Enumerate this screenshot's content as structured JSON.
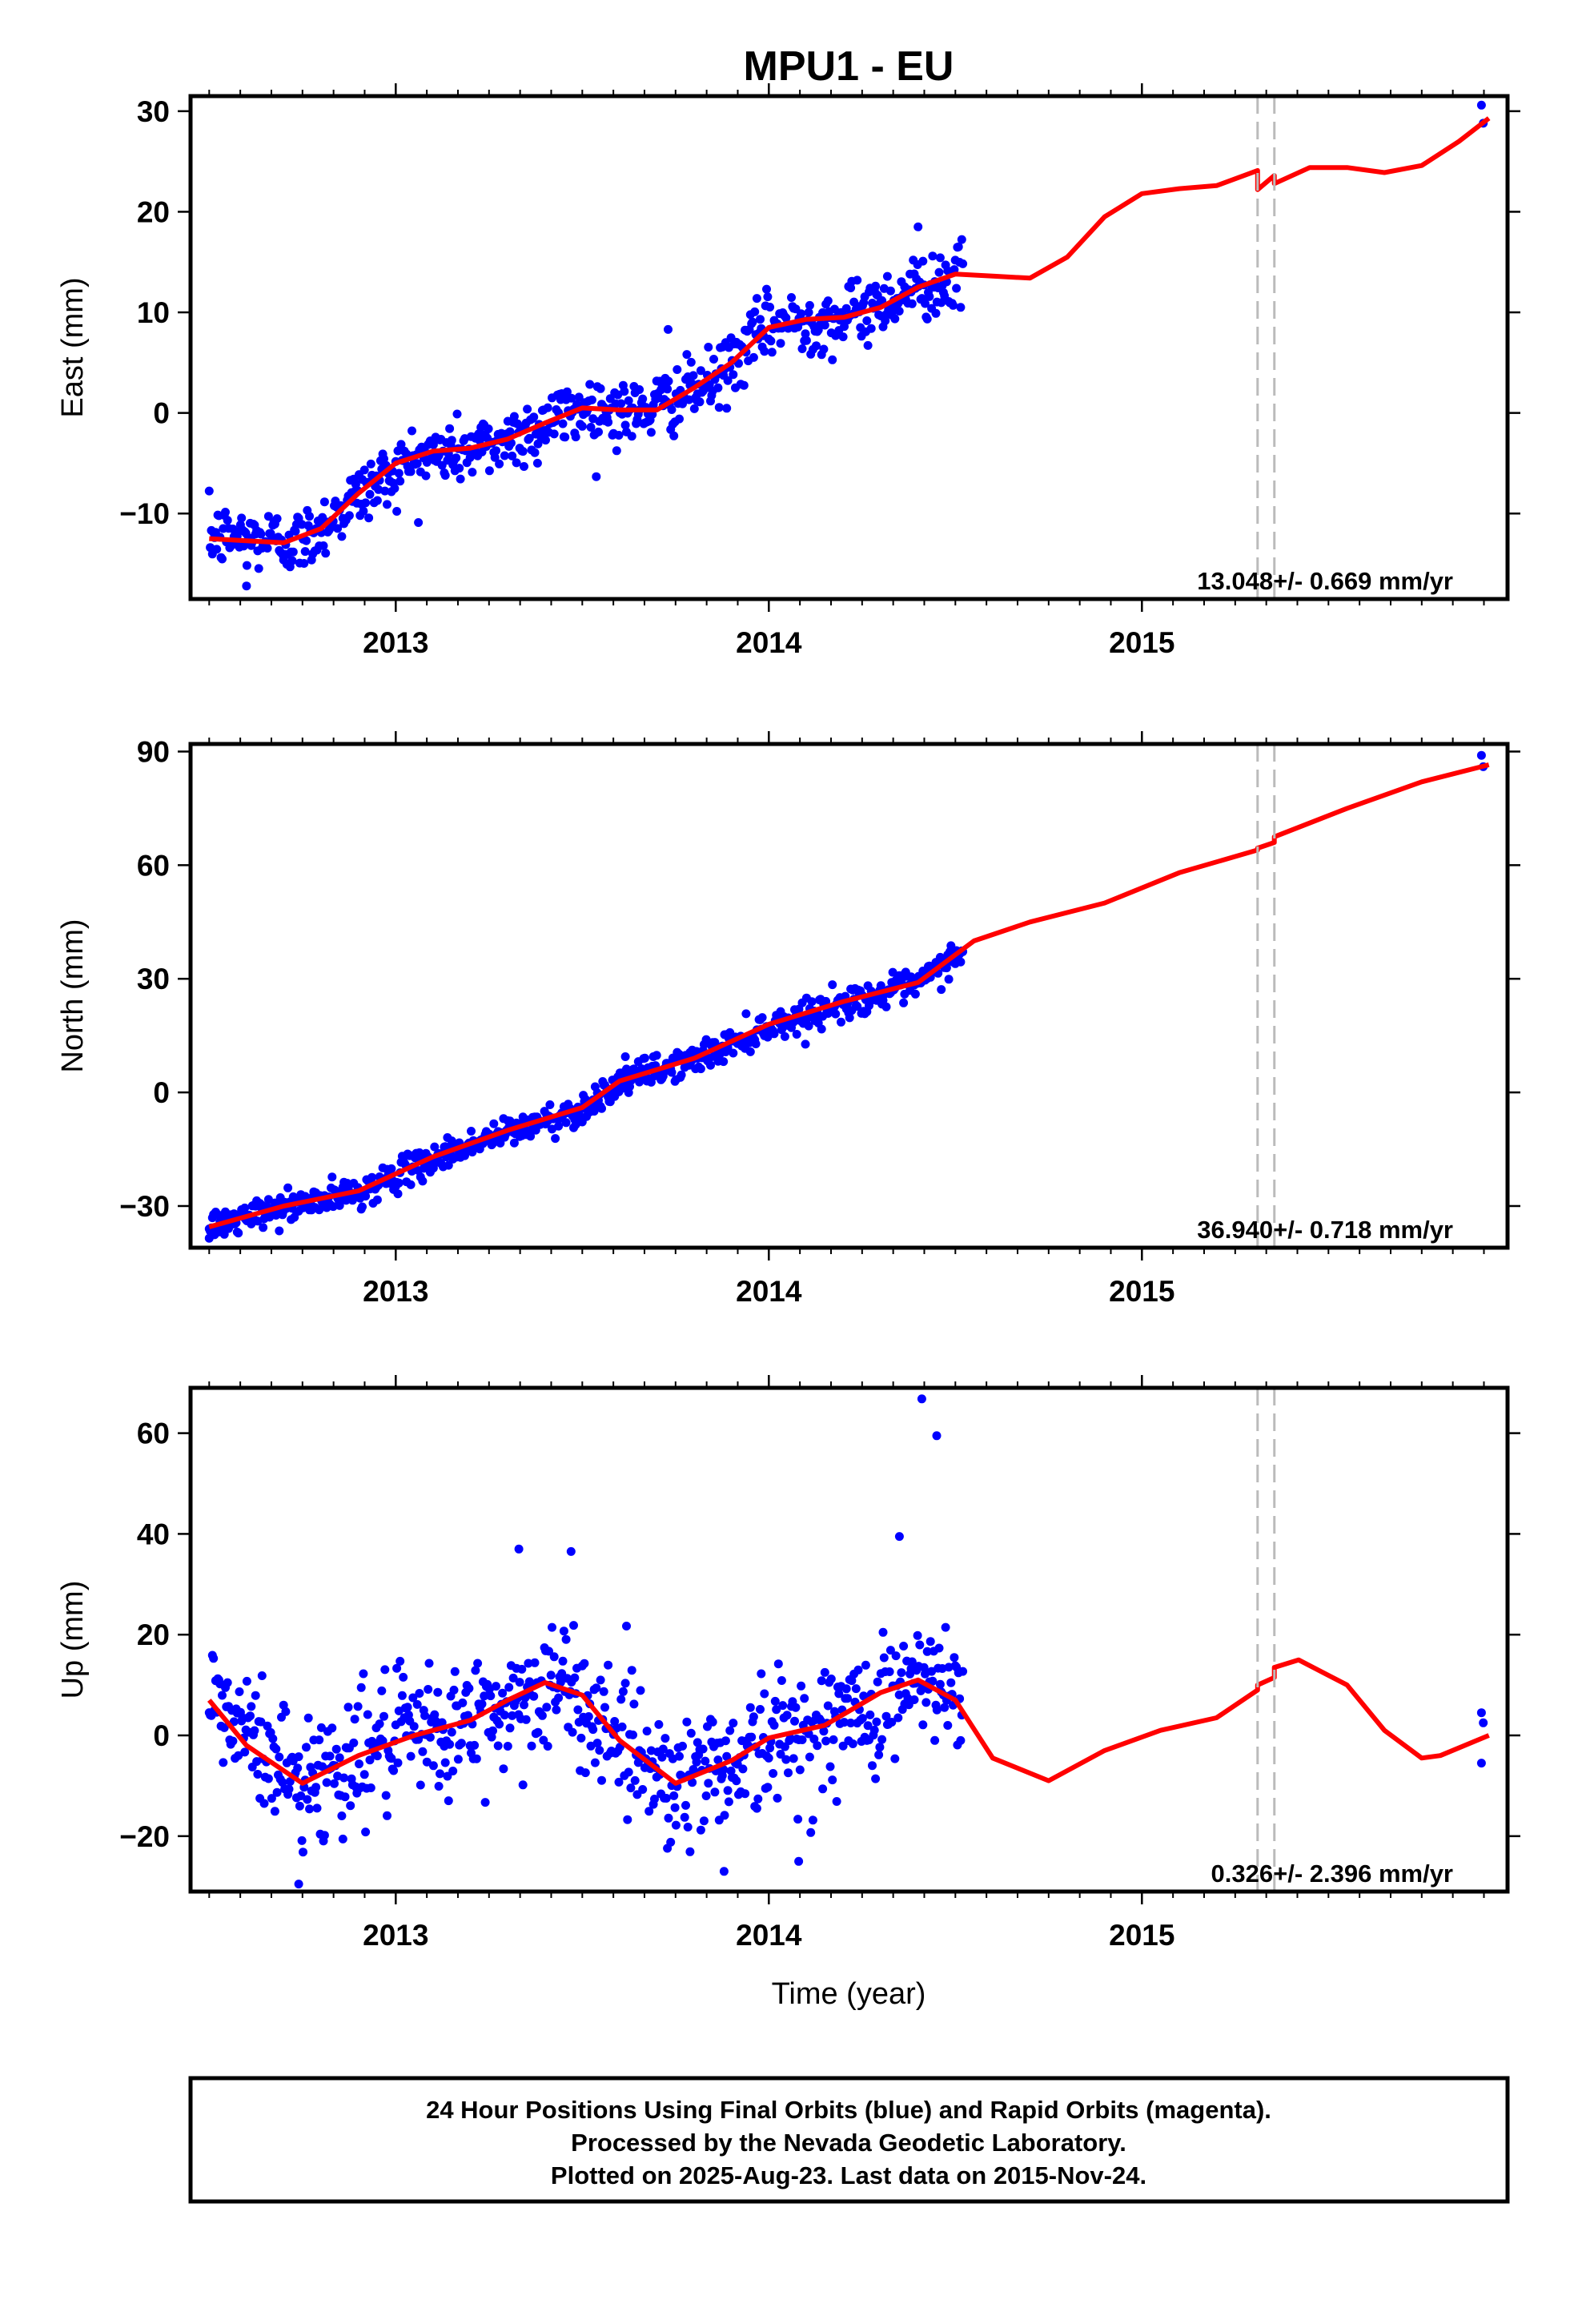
{
  "title": "MPU1 - EU",
  "footer": {
    "line1": "24 Hour Positions Using Final Orbits (blue) and Rapid Orbits (magenta).",
    "line2": "Processed by the Nevada Geodetic Laboratory.",
    "line3": "Plotted on 2025-Aug-23. Last data on 2015-Nov-24."
  },
  "colors": {
    "final_orbit_points": "#0000ff",
    "trend_line": "#ff0000",
    "equipment_change_line": "#bbbbbb",
    "frame": "#000000"
  },
  "chart_data": [
    {
      "type": "scatter",
      "ylabel": "East (mm)",
      "xlabel": "",
      "xlim": [
        2012.45,
        2015.98
      ],
      "ylim": [
        -18.5,
        31.5
      ],
      "x_ticks": [
        2013,
        2014,
        2015
      ],
      "x_tick_labels": [
        "2013",
        "2014",
        "2015"
      ],
      "y_ticks": [
        -10,
        0,
        10,
        20,
        30
      ],
      "y_tick_labels": [
        "−10",
        "0",
        "10",
        "20",
        "30"
      ],
      "rate_text": "13.048+/- 0.669 mm/yr",
      "vertical_markers": [
        2015.31,
        2015.355
      ],
      "grid": false,
      "trend": {
        "name": "model fit",
        "x": [
          2012.5,
          2012.6,
          2012.7,
          2012.8,
          2012.9,
          2013.0,
          2013.1,
          2013.2,
          2013.3,
          2013.4,
          2013.5,
          2013.6,
          2013.7,
          2013.8,
          2013.9,
          2014.0,
          2014.1,
          2014.2,
          2014.3,
          2014.4,
          2014.5,
          2014.6,
          2014.7,
          2014.8,
          2014.9,
          2015.0,
          2015.1,
          2015.2,
          2015.31,
          2015.31,
          2015.355,
          2015.355,
          2015.45,
          2015.55,
          2015.65,
          2015.75,
          2015.85,
          2015.93
        ],
        "y": [
          -12.5,
          -12.7,
          -12.9,
          -11.5,
          -8.0,
          -5.0,
          -3.8,
          -3.5,
          -2.6,
          -1.0,
          0.5,
          0.3,
          0.3,
          2.5,
          5.0,
          8.5,
          9.3,
          9.5,
          10.5,
          12.5,
          13.8,
          13.6,
          13.4,
          15.5,
          19.5,
          21.8,
          22.3,
          22.6,
          24.1,
          22.2,
          23.6,
          22.8,
          24.4,
          24.4,
          23.9,
          24.6,
          27.0,
          29.3
        ]
      },
      "observations": {
        "anchors": [
          [
            2012.5,
            -12.2
          ],
          [
            2012.75,
            -12.8
          ],
          [
            2012.9,
            -8.2
          ],
          [
            2013.05,
            -4.5
          ],
          [
            2013.25,
            -3.3
          ],
          [
            2013.5,
            0.5
          ],
          [
            2013.65,
            0.0
          ],
          [
            2013.85,
            3.0
          ],
          [
            2014.0,
            8.8
          ],
          [
            2014.2,
            9.4
          ],
          [
            2014.4,
            12.5
          ],
          [
            2014.52,
            13.5
          ]
        ],
        "count": 700,
        "scatter_sd": 1.6,
        "extra_points": [
          [
            2015.91,
            30.6
          ],
          [
            2015.915,
            28.8
          ],
          [
            2013.73,
            8.3
          ],
          [
            2012.6,
            -17.2
          ],
          [
            2014.4,
            18.5
          ],
          [
            2013.38,
            -5.0
          ]
        ]
      }
    },
    {
      "type": "scatter",
      "ylabel": "North (mm)",
      "xlabel": "",
      "xlim": [
        2012.45,
        2015.98
      ],
      "ylim": [
        -41,
        92
      ],
      "x_ticks": [
        2013,
        2014,
        2015
      ],
      "x_tick_labels": [
        "2013",
        "2014",
        "2015"
      ],
      "y_ticks": [
        -30,
        0,
        30,
        60,
        90
      ],
      "y_tick_labels": [
        "−30",
        "0",
        "30",
        "60",
        "90"
      ],
      "rate_text": "36.940+/- 0.718 mm/yr",
      "vertical_markers": [
        2015.31,
        2015.355
      ],
      "grid": false,
      "trend": {
        "name": "model fit",
        "x": [
          2012.5,
          2012.7,
          2012.9,
          2013.1,
          2013.3,
          2013.5,
          2013.6,
          2013.8,
          2014.0,
          2014.2,
          2014.4,
          2014.55,
          2014.7,
          2014.9,
          2015.1,
          2015.31,
          2015.31,
          2015.355,
          2015.355,
          2015.55,
          2015.75,
          2015.93
        ],
        "y": [
          -35.5,
          -30,
          -26,
          -17,
          -10,
          -4,
          3,
          9,
          18,
          24,
          29,
          40,
          45,
          50,
          58,
          64,
          64.5,
          66,
          67.5,
          75,
          82,
          86.5
        ]
      },
      "observations": {
        "anchors": [
          [
            2012.5,
            -35.5
          ],
          [
            2012.7,
            -30.5
          ],
          [
            2012.9,
            -26.5
          ],
          [
            2013.1,
            -17.5
          ],
          [
            2013.3,
            -10.5
          ],
          [
            2013.5,
            -4.5
          ],
          [
            2013.6,
            3.0
          ],
          [
            2013.8,
            8.5
          ],
          [
            2014.0,
            17.5
          ],
          [
            2014.2,
            23.5
          ],
          [
            2014.4,
            28.5
          ],
          [
            2014.52,
            37.5
          ]
        ],
        "count": 700,
        "scatter_sd": 2.0,
        "extra_points": [
          [
            2015.91,
            89.0
          ],
          [
            2015.915,
            86.0
          ],
          [
            2012.5,
            -38.5
          ]
        ]
      }
    },
    {
      "type": "scatter",
      "ylabel": "Up (mm)",
      "xlabel": "Time (year)",
      "xlim": [
        2012.45,
        2015.98
      ],
      "ylim": [
        -31,
        69
      ],
      "x_ticks": [
        2013,
        2014,
        2015
      ],
      "x_tick_labels": [
        "2013",
        "2014",
        "2015"
      ],
      "y_ticks": [
        -20,
        0,
        20,
        40,
        60
      ],
      "y_tick_labels": [
        "−20",
        "0",
        "20",
        "40",
        "60"
      ],
      "rate_text": "0.326+/- 2.396 mm/yr",
      "vertical_markers": [
        2015.31,
        2015.355
      ],
      "grid": false,
      "trend": {
        "name": "model fit",
        "x": [
          2012.5,
          2012.6,
          2012.75,
          2012.9,
          2013.05,
          2013.2,
          2013.3,
          2013.4,
          2013.5,
          2013.6,
          2013.75,
          2013.9,
          2014.0,
          2014.15,
          2014.3,
          2014.4,
          2014.5,
          2014.6,
          2014.75,
          2014.9,
          2015.05,
          2015.2,
          2015.31,
          2015.31,
          2015.355,
          2015.355,
          2015.42,
          2015.55,
          2015.65,
          2015.75,
          2015.8,
          2015.93
        ],
        "y": [
          7,
          -2,
          -9.5,
          -4,
          0,
          3,
          7,
          10.5,
          8,
          -1,
          -9.5,
          -5,
          -0.5,
          2,
          8.5,
          11,
          7,
          -4.5,
          -9,
          -3,
          1,
          3.5,
          9,
          10,
          11.5,
          13.5,
          15,
          10,
          1,
          -4.5,
          -4,
          0
        ]
      },
      "observations": {
        "anchors": [
          [
            2012.5,
            7.0
          ],
          [
            2012.75,
            -9.5
          ],
          [
            2012.95,
            -2.0
          ],
          [
            2013.1,
            0.0
          ],
          [
            2013.25,
            3.5
          ],
          [
            2013.42,
            10.5
          ],
          [
            2013.58,
            2.0
          ],
          [
            2013.75,
            -9.5
          ],
          [
            2013.92,
            -4.0
          ],
          [
            2014.05,
            0.0
          ],
          [
            2014.2,
            2.5
          ],
          [
            2014.4,
            11.0
          ],
          [
            2014.52,
            7.0
          ]
        ],
        "count": 700,
        "scatter_sd": 6.5,
        "extra_points": [
          [
            2014.41,
            66.8
          ],
          [
            2014.45,
            59.5
          ],
          [
            2013.33,
            37.0
          ],
          [
            2013.47,
            36.5
          ],
          [
            2014.35,
            39.5
          ],
          [
            2014.08,
            -25.0
          ],
          [
            2013.88,
            -27.0
          ],
          [
            2012.74,
            -29.5
          ],
          [
            2015.91,
            4.5
          ],
          [
            2015.915,
            2.5
          ],
          [
            2015.91,
            -5.5
          ]
        ]
      }
    }
  ]
}
